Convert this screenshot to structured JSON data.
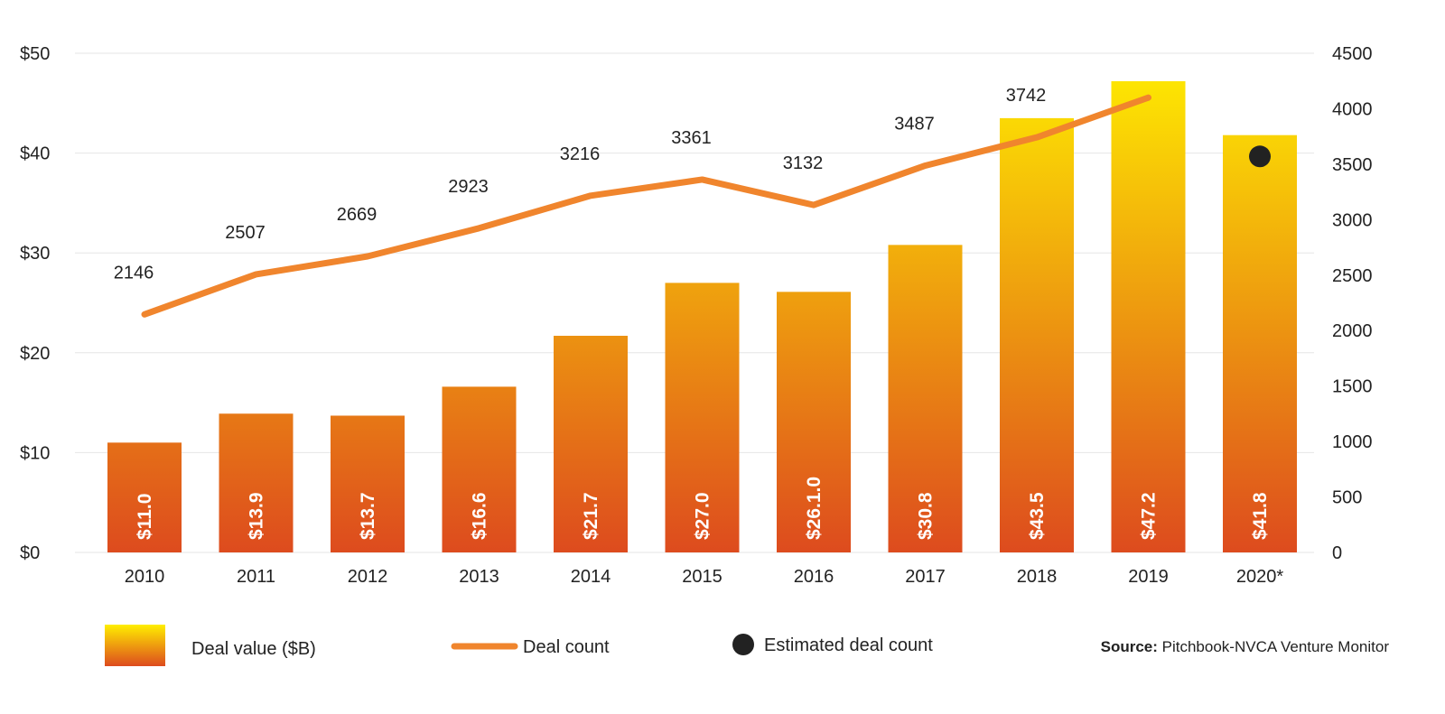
{
  "chart_data": {
    "type": "bar+line",
    "categories": [
      "2010",
      "2011",
      "2012",
      "2013",
      "2014",
      "2015",
      "2016",
      "2017",
      "2018",
      "2019",
      "2020*"
    ],
    "series": [
      {
        "name": "Deal value ($B)",
        "type": "bar",
        "axis": "left",
        "values": [
          11.0,
          13.9,
          13.7,
          16.6,
          21.7,
          27.0,
          26.1,
          30.8,
          43.5,
          47.2,
          41.8
        ],
        "labels": [
          "$11.0",
          "$13.9",
          "$13.7",
          "$16.6",
          "$21.7",
          "$27.0",
          "$26.1.0",
          "$30.8",
          "$43.5",
          "$47.2",
          "$41.8"
        ]
      },
      {
        "name": "Deal count",
        "type": "line",
        "axis": "right",
        "values": [
          2146,
          2507,
          2669,
          2923,
          3216,
          3361,
          3132,
          3487,
          3742,
          4100,
          null
        ],
        "labels": [
          "2146",
          "2507",
          "2669",
          "2923",
          "3216",
          "3361",
          "3132",
          "3487",
          "3742",
          "",
          ""
        ]
      },
      {
        "name": "Estimated deal count",
        "type": "point",
        "axis": "right",
        "values": [
          null,
          null,
          null,
          null,
          null,
          null,
          null,
          null,
          null,
          null,
          3570
        ]
      }
    ],
    "left_axis": {
      "range": [
        0,
        50
      ],
      "ticks": [
        "$0",
        "$10",
        "$20",
        "$30",
        "$40",
        "$50"
      ]
    },
    "right_axis": {
      "range": [
        0,
        4500
      ],
      "ticks": [
        "0",
        "500",
        "1000",
        "1500",
        "2000",
        "2500",
        "3000",
        "3500",
        "4000",
        "4500"
      ]
    },
    "grid": true,
    "legend_placement": "bottom",
    "colors": {
      "bar_top": "#FFEE00",
      "bar_bottom": "#DD4B1E",
      "line": "#F0852D",
      "point": "#222222",
      "grid": "#E6E6E6"
    }
  },
  "legend": {
    "deal_value": "Deal value ($B)",
    "deal_count": "Deal count",
    "estimated": "Estimated deal count"
  },
  "source": {
    "label": "Source:",
    "text": "Pitchbook-NVCA Venture Monitor"
  }
}
